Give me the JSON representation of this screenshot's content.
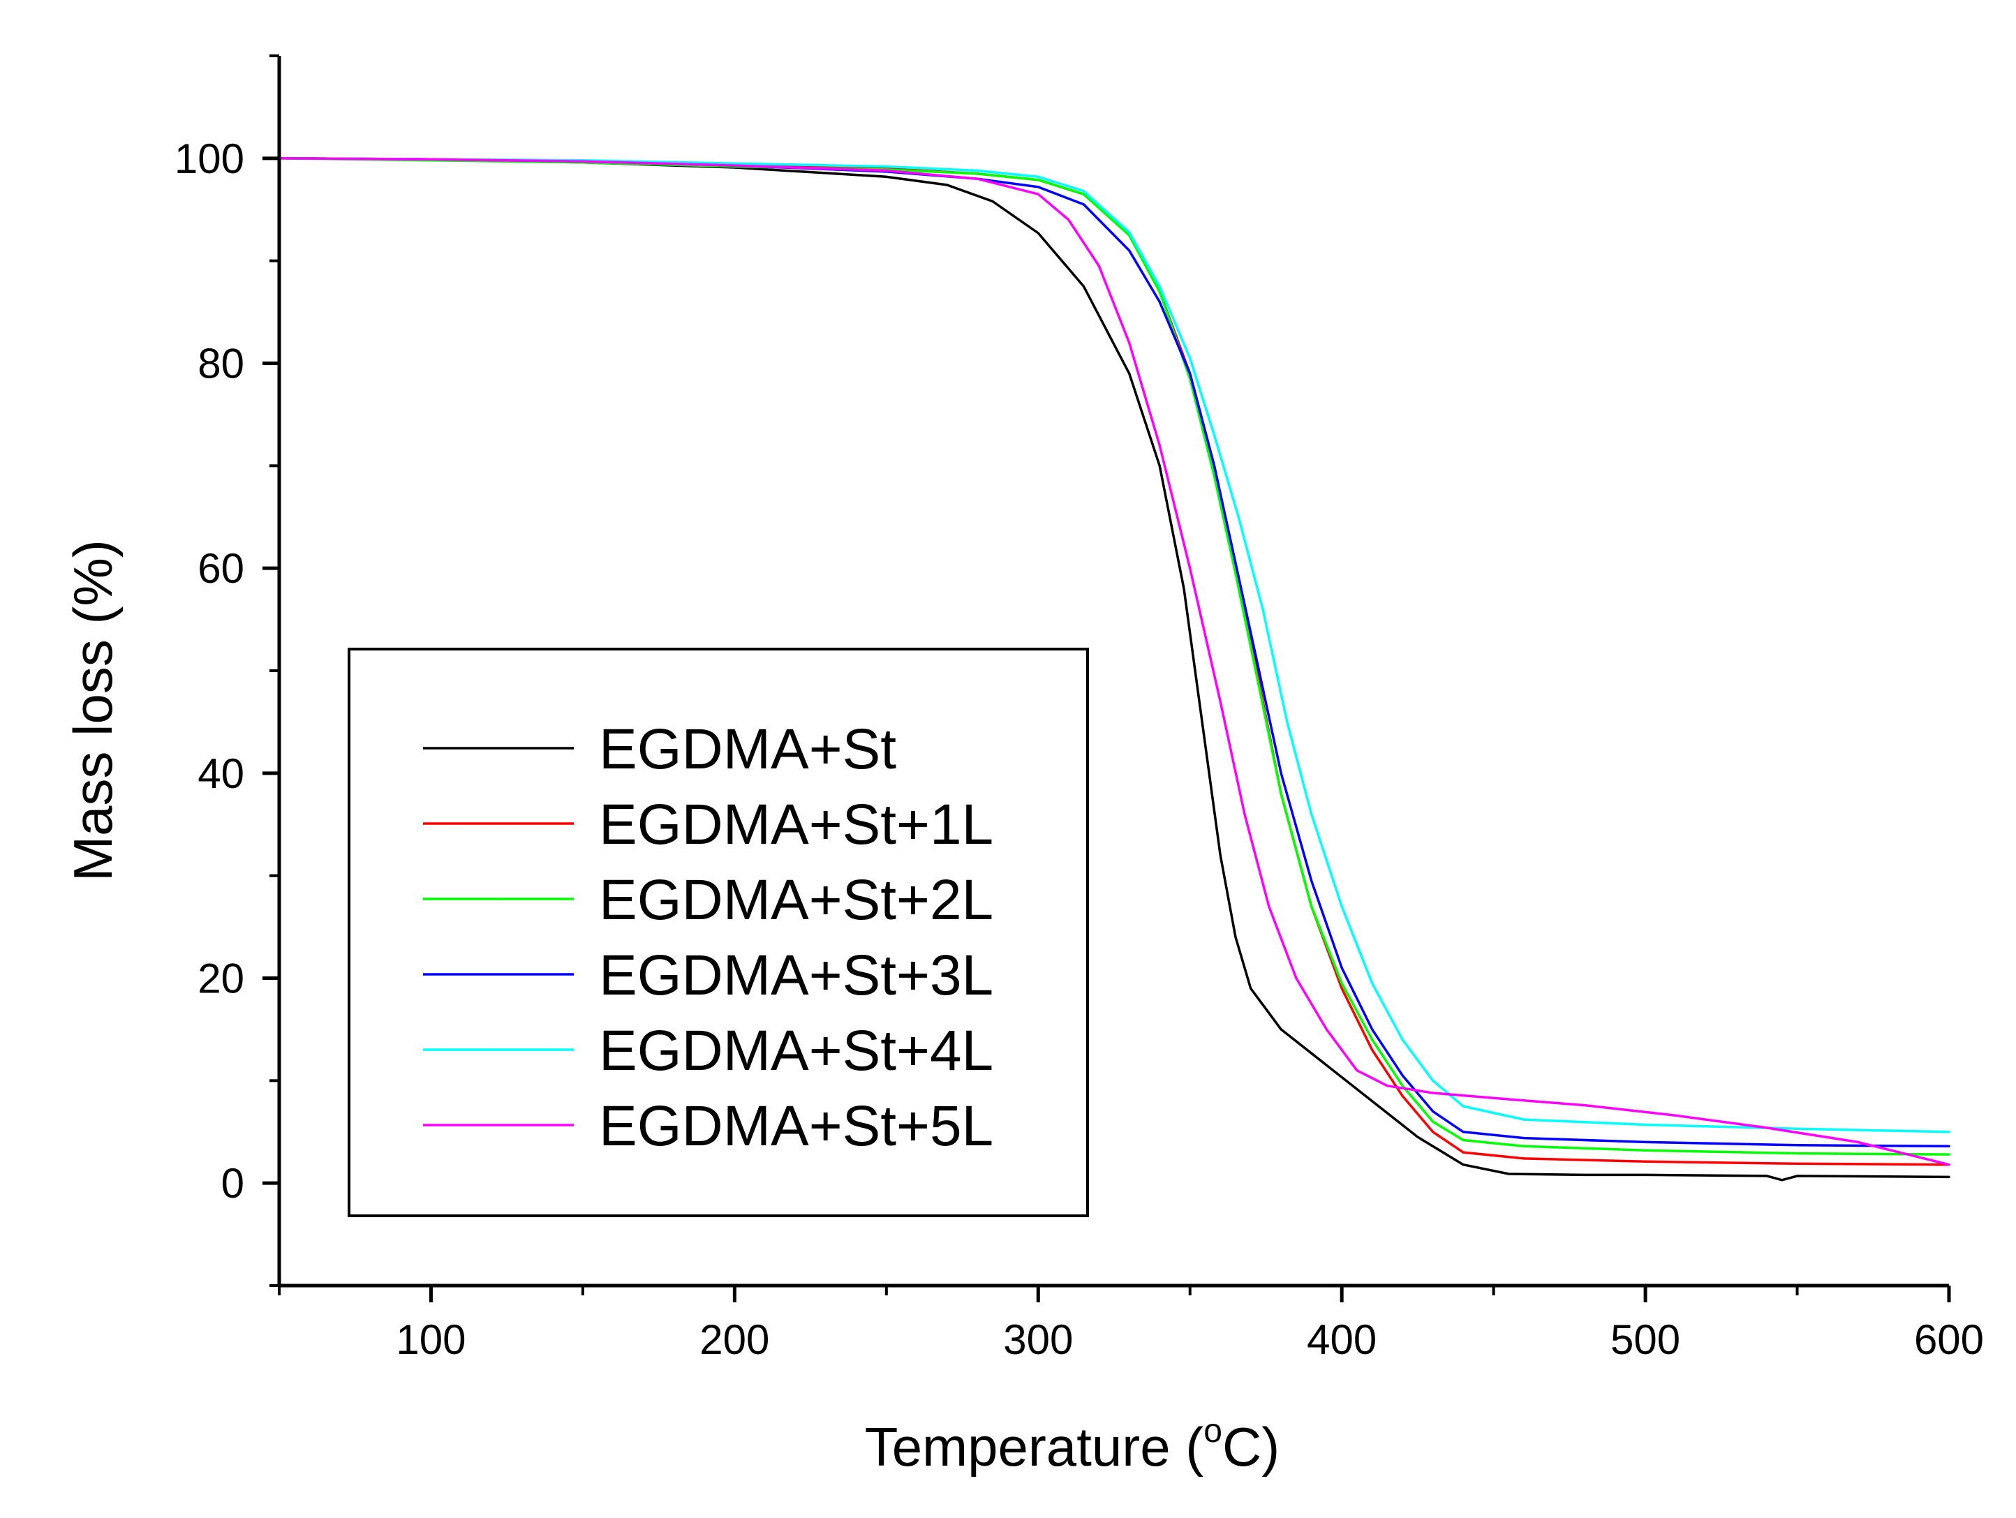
{
  "chart_data": {
    "type": "line",
    "title": "",
    "xlabel": "Temperature (",
    "xlabel_sup": "o",
    "xlabel_unit": "C)",
    "ylabel": "Mass loss (%)",
    "xlim": [
      50,
      600
    ],
    "ylim": [
      -10,
      110
    ],
    "x_ticks": [
      100,
      200,
      300,
      400,
      500,
      600
    ],
    "y_ticks": [
      0,
      20,
      40,
      60,
      80,
      100
    ],
    "legend_position": "lower-left",
    "grid": false,
    "series": [
      {
        "name": "EGDMA+St",
        "color": "#000000",
        "points": [
          [
            50,
            100
          ],
          [
            100,
            99.9
          ],
          [
            150,
            99.6
          ],
          [
            200,
            99.1
          ],
          [
            250,
            98.2
          ],
          [
            270,
            97.4
          ],
          [
            285,
            95.8
          ],
          [
            300,
            92.7
          ],
          [
            315,
            87.5
          ],
          [
            330,
            79.0
          ],
          [
            340,
            70.0
          ],
          [
            348,
            58.0
          ],
          [
            354,
            45.0
          ],
          [
            360,
            32.0
          ],
          [
            365,
            24.0
          ],
          [
            370,
            19.0
          ],
          [
            380,
            15.0
          ],
          [
            395,
            11.5
          ],
          [
            410,
            8.0
          ],
          [
            425,
            4.5
          ],
          [
            440,
            1.8
          ],
          [
            455,
            0.9
          ],
          [
            480,
            0.8
          ],
          [
            500,
            0.8
          ],
          [
            540,
            0.7
          ],
          [
            545,
            0.3
          ],
          [
            550,
            0.7
          ],
          [
            600,
            0.6
          ]
        ]
      },
      {
        "name": "EGDMA+St+1L",
        "color": "#ff0000",
        "points": [
          [
            50,
            100
          ],
          [
            100,
            99.9
          ],
          [
            150,
            99.7
          ],
          [
            200,
            99.4
          ],
          [
            250,
            99.0
          ],
          [
            280,
            98.5
          ],
          [
            300,
            97.9
          ],
          [
            315,
            96.5
          ],
          [
            330,
            92.5
          ],
          [
            340,
            87.0
          ],
          [
            350,
            79.0
          ],
          [
            358,
            70.0
          ],
          [
            365,
            60.0
          ],
          [
            372,
            50.0
          ],
          [
            380,
            38.0
          ],
          [
            390,
            27.0
          ],
          [
            400,
            19.0
          ],
          [
            410,
            13.0
          ],
          [
            420,
            8.5
          ],
          [
            430,
            5.0
          ],
          [
            440,
            3.0
          ],
          [
            460,
            2.4
          ],
          [
            500,
            2.1
          ],
          [
            550,
            1.9
          ],
          [
            600,
            1.8
          ]
        ]
      },
      {
        "name": "EGDMA+St+2L",
        "color": "#00ff00",
        "points": [
          [
            50,
            100
          ],
          [
            100,
            99.8
          ],
          [
            150,
            99.6
          ],
          [
            200,
            99.2
          ],
          [
            250,
            98.9
          ],
          [
            280,
            98.5
          ],
          [
            300,
            97.9
          ],
          [
            315,
            96.5
          ],
          [
            330,
            92.5
          ],
          [
            340,
            87.0
          ],
          [
            350,
            78.5
          ],
          [
            358,
            69.0
          ],
          [
            365,
            59.5
          ],
          [
            372,
            49.5
          ],
          [
            380,
            38.0
          ],
          [
            390,
            27.0
          ],
          [
            400,
            19.5
          ],
          [
            410,
            14.0
          ],
          [
            420,
            9.5
          ],
          [
            430,
            6.0
          ],
          [
            440,
            4.2
          ],
          [
            460,
            3.6
          ],
          [
            500,
            3.2
          ],
          [
            550,
            2.9
          ],
          [
            600,
            2.8
          ]
        ]
      },
      {
        "name": "EGDMA+St+3L",
        "color": "#0000ff",
        "points": [
          [
            50,
            100
          ],
          [
            100,
            99.9
          ],
          [
            150,
            99.7
          ],
          [
            200,
            99.3
          ],
          [
            250,
            98.7
          ],
          [
            280,
            98.0
          ],
          [
            300,
            97.2
          ],
          [
            315,
            95.5
          ],
          [
            330,
            91.0
          ],
          [
            340,
            86.0
          ],
          [
            350,
            79.0
          ],
          [
            358,
            70.0
          ],
          [
            365,
            60.5
          ],
          [
            372,
            51.0
          ],
          [
            380,
            40.0
          ],
          [
            390,
            29.5
          ],
          [
            400,
            21.0
          ],
          [
            410,
            15.0
          ],
          [
            420,
            10.5
          ],
          [
            430,
            7.0
          ],
          [
            440,
            5.0
          ],
          [
            460,
            4.4
          ],
          [
            500,
            4.0
          ],
          [
            550,
            3.7
          ],
          [
            600,
            3.6
          ]
        ]
      },
      {
        "name": "EGDMA+St+4L",
        "color": "#00ffff",
        "points": [
          [
            50,
            100
          ],
          [
            100,
            99.9
          ],
          [
            150,
            99.8
          ],
          [
            200,
            99.5
          ],
          [
            250,
            99.2
          ],
          [
            280,
            98.8
          ],
          [
            300,
            98.2
          ],
          [
            315,
            96.8
          ],
          [
            330,
            92.8
          ],
          [
            340,
            87.5
          ],
          [
            350,
            80.5
          ],
          [
            358,
            73.0
          ],
          [
            366,
            65.0
          ],
          [
            374,
            56.0
          ],
          [
            382,
            45.0
          ],
          [
            390,
            36.0
          ],
          [
            400,
            27.0
          ],
          [
            410,
            19.5
          ],
          [
            420,
            14.0
          ],
          [
            430,
            10.0
          ],
          [
            440,
            7.5
          ],
          [
            460,
            6.2
          ],
          [
            500,
            5.7
          ],
          [
            550,
            5.3
          ],
          [
            600,
            5.0
          ]
        ]
      },
      {
        "name": "EGDMA+St+5L",
        "color": "#ff00ff",
        "points": [
          [
            50,
            100
          ],
          [
            100,
            99.9
          ],
          [
            150,
            99.7
          ],
          [
            200,
            99.3
          ],
          [
            250,
            98.8
          ],
          [
            280,
            98.0
          ],
          [
            300,
            96.5
          ],
          [
            310,
            94.0
          ],
          [
            320,
            89.5
          ],
          [
            330,
            82.0
          ],
          [
            340,
            72.0
          ],
          [
            350,
            60.0
          ],
          [
            360,
            47.0
          ],
          [
            368,
            36.0
          ],
          [
            376,
            27.0
          ],
          [
            385,
            20.0
          ],
          [
            395,
            15.0
          ],
          [
            405,
            11.0
          ],
          [
            415,
            9.5
          ],
          [
            430,
            8.8
          ],
          [
            450,
            8.3
          ],
          [
            480,
            7.6
          ],
          [
            510,
            6.6
          ],
          [
            540,
            5.4
          ],
          [
            570,
            4.0
          ],
          [
            600,
            1.8
          ]
        ]
      }
    ]
  }
}
